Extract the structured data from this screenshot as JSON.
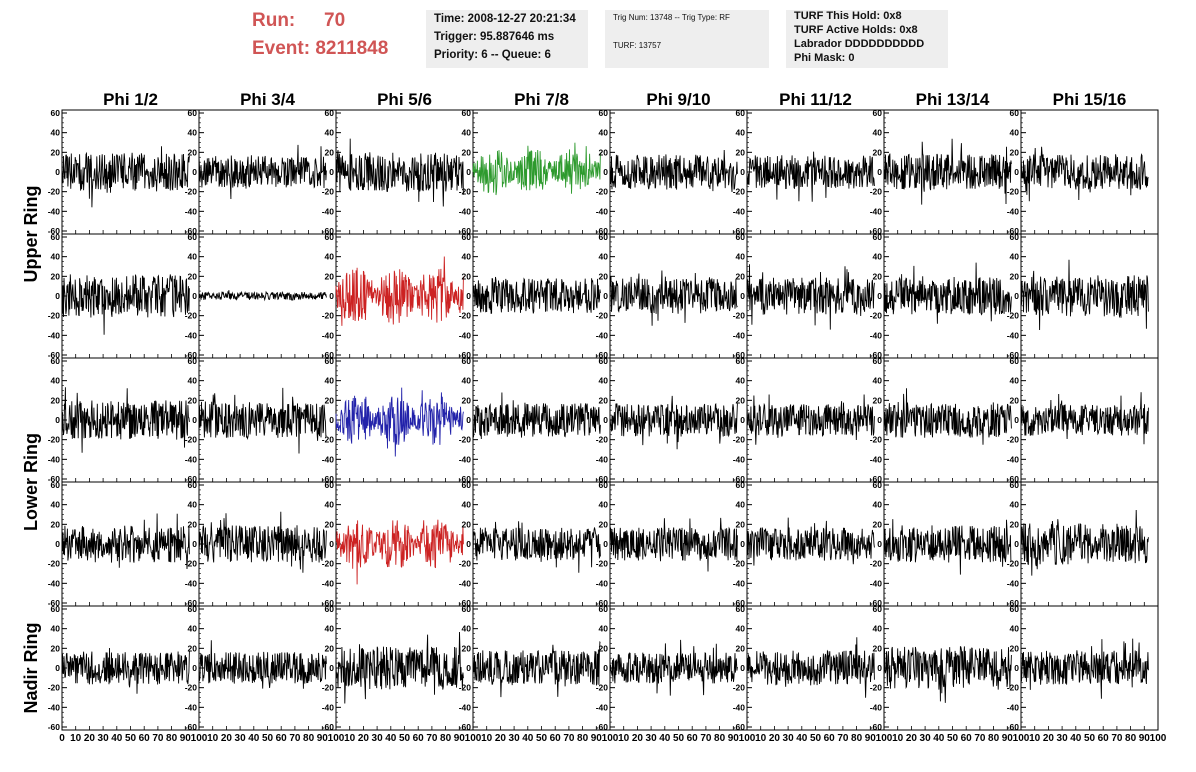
{
  "header": {
    "run_label": "Run:",
    "run_value": "70",
    "event_label": "Event:",
    "event_value": "8211848",
    "time_line": "Time: 2008-12-27 20:21:34",
    "trigger_line": "Trigger: 95.887646 ms",
    "priority_line": "Priority: 6 -- Queue: 6",
    "trig_line": "Trig Num: 13748 -- Trig Type: RF",
    "turf_line": "TURF: 13757",
    "hold_line": "TURF This Hold: 0x8",
    "active_holds_line": "TURF Active Holds: 0x8",
    "labrador_line": "Labrador DDDDDDDDDD",
    "phimask_line": "Phi Mask: 0"
  },
  "chart_data": {
    "type": "line",
    "columns": [
      "Phi 1/2",
      "Phi 3/4",
      "Phi 5/6",
      "Phi 7/8",
      "Phi 9/10",
      "Phi 11/12",
      "Phi 13/14",
      "Phi 15/16"
    ],
    "row_groups": [
      {
        "name": "Upper Ring",
        "rows": [
          0,
          1
        ]
      },
      {
        "name": "Lower Ring",
        "rows": [
          2,
          3
        ]
      },
      {
        "name": "Nadir Ring",
        "rows": [
          4
        ]
      }
    ],
    "ylim": [
      -60,
      60
    ],
    "y_ticks": [
      -60,
      -40,
      -20,
      0,
      20,
      40,
      60
    ],
    "xlim": [
      0,
      100
    ],
    "x_ticks": [
      0,
      10,
      20,
      30,
      40,
      50,
      60,
      70,
      80,
      90,
      100
    ],
    "trace_x_range": [
      0,
      93
    ],
    "grid": false,
    "colors": {
      "default": "#000000",
      "green": "#2e9a2e",
      "red": "#cc2222",
      "blue": "#2222aa"
    },
    "panels": [
      [
        {
          "amp": 20,
          "peak": 40
        },
        {
          "amp": 17,
          "peak": 38
        },
        {
          "amp": 20,
          "peak": 40
        },
        {
          "amp": 24,
          "peak": 60,
          "color": "green"
        },
        {
          "amp": 18,
          "peak": 45
        },
        {
          "amp": 17,
          "peak": 38
        },
        {
          "amp": 19,
          "peak": 40
        },
        {
          "amp": 18,
          "peak": 38
        }
      ],
      [
        {
          "amp": 22,
          "peak": 45
        },
        {
          "amp": 4,
          "peak": 6
        },
        {
          "amp": 30,
          "peak": 60,
          "color": "red"
        },
        {
          "amp": 18,
          "peak": 40
        },
        {
          "amp": 18,
          "peak": 42
        },
        {
          "amp": 19,
          "peak": 42
        },
        {
          "amp": 19,
          "peak": 42
        },
        {
          "amp": 21,
          "peak": 45
        }
      ],
      [
        {
          "amp": 20,
          "peak": 45
        },
        {
          "amp": 19,
          "peak": 42
        },
        {
          "amp": 26,
          "peak": 52,
          "color": "blue"
        },
        {
          "amp": 17,
          "peak": 38
        },
        {
          "amp": 17,
          "peak": 38
        },
        {
          "amp": 16,
          "peak": 36
        },
        {
          "amp": 18,
          "peak": 38
        },
        {
          "amp": 16,
          "peak": 36
        }
      ],
      [
        {
          "amp": 19,
          "peak": 40
        },
        {
          "amp": 19,
          "peak": 42
        },
        {
          "amp": 26,
          "peak": 50,
          "color": "red"
        },
        {
          "amp": 17,
          "peak": 40
        },
        {
          "amp": 17,
          "peak": 38
        },
        {
          "amp": 17,
          "peak": 38
        },
        {
          "amp": 19,
          "peak": 40
        },
        {
          "amp": 21,
          "peak": 48
        }
      ],
      [
        {
          "amp": 17,
          "peak": 40
        },
        {
          "amp": 16,
          "peak": 36
        },
        {
          "amp": 22,
          "peak": 55
        },
        {
          "amp": 18,
          "peak": 38
        },
        {
          "amp": 16,
          "peak": 40
        },
        {
          "amp": 18,
          "peak": 40
        },
        {
          "amp": 22,
          "peak": 48
        },
        {
          "amp": 18,
          "peak": 40
        }
      ]
    ]
  }
}
